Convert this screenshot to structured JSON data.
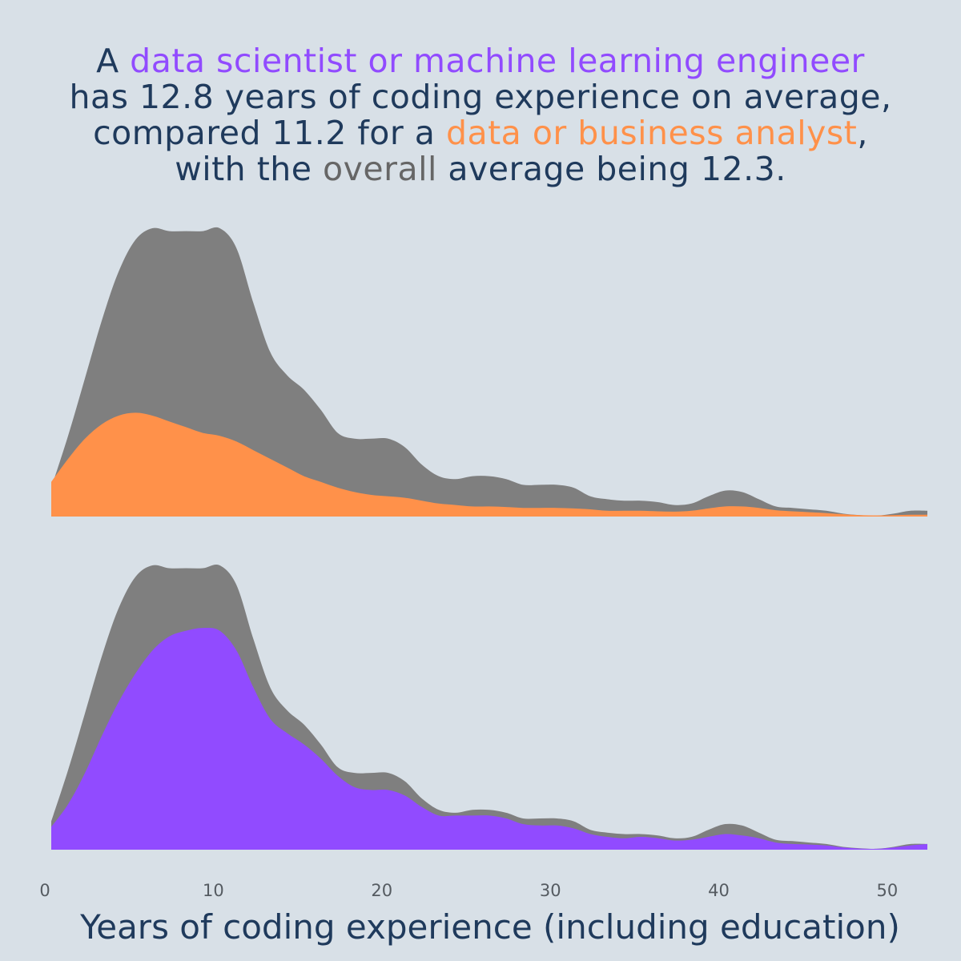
{
  "headline": {
    "l1_pre": "A ",
    "l1_hl": "data scientist or machine learning engineer",
    "l2": "has 12.8 years of coding experience on average,",
    "l3_pre": "compared 11.2 for a ",
    "l3_hl": "data or business analyst",
    "l3_post": ",",
    "l4_pre": "with the ",
    "l4_hl": "overall",
    "l4_post": " average being 12.3."
  },
  "colors": {
    "background": "#d8e0e7",
    "overall": "#7f7f7f",
    "analyst": "#ff914a",
    "ds_mle": "#914bff",
    "text": "#1f3a5c",
    "overall_text": "#666666"
  },
  "chart_data": [
    {
      "type": "area",
      "xlim": [
        0,
        52
      ],
      "series": [
        {
          "name": "overall",
          "x": [
            0,
            1,
            2,
            3,
            4,
            5,
            6,
            7,
            8,
            9,
            10,
            11,
            12,
            13,
            14,
            15,
            16,
            17,
            18,
            19,
            20,
            21,
            22,
            23,
            24,
            25,
            26,
            27,
            28,
            29,
            30,
            31,
            32,
            33,
            34,
            35,
            36,
            37,
            38,
            39,
            40,
            41,
            42,
            43,
            44,
            45,
            46,
            47,
            48,
            49,
            50,
            51,
            52
          ],
          "values": [
            0.1,
            0.28,
            0.48,
            0.68,
            0.85,
            0.96,
            1.0,
            0.99,
            0.99,
            0.99,
            1.0,
            0.93,
            0.74,
            0.57,
            0.49,
            0.44,
            0.37,
            0.29,
            0.27,
            0.27,
            0.27,
            0.24,
            0.18,
            0.14,
            0.13,
            0.14,
            0.14,
            0.13,
            0.11,
            0.11,
            0.11,
            0.1,
            0.07,
            0.06,
            0.055,
            0.055,
            0.05,
            0.04,
            0.045,
            0.07,
            0.09,
            0.085,
            0.06,
            0.035,
            0.03,
            0.025,
            0.02,
            0.01,
            0.005,
            0.003,
            0.01,
            0.02,
            0.02
          ]
        },
        {
          "name": "data or business analyst",
          "x": [
            0,
            1,
            2,
            3,
            4,
            5,
            6,
            7,
            8,
            9,
            10,
            11,
            12,
            13,
            14,
            15,
            16,
            17,
            18,
            19,
            20,
            21,
            22,
            23,
            24,
            25,
            26,
            27,
            28,
            29,
            30,
            31,
            32,
            33,
            34,
            35,
            36,
            37,
            38,
            39,
            40,
            41,
            42,
            43,
            44,
            45,
            46,
            47,
            48,
            49,
            50,
            51,
            52
          ],
          "values": [
            0.12,
            0.2,
            0.27,
            0.32,
            0.35,
            0.36,
            0.35,
            0.33,
            0.31,
            0.29,
            0.28,
            0.26,
            0.23,
            0.2,
            0.17,
            0.14,
            0.12,
            0.1,
            0.085,
            0.075,
            0.07,
            0.065,
            0.055,
            0.045,
            0.04,
            0.035,
            0.035,
            0.033,
            0.03,
            0.03,
            0.03,
            0.028,
            0.025,
            0.02,
            0.02,
            0.02,
            0.018,
            0.017,
            0.02,
            0.028,
            0.035,
            0.035,
            0.03,
            0.022,
            0.018,
            0.015,
            0.012,
            0.008,
            0.005,
            0.004,
            0.005,
            0.006,
            0.006
          ]
        }
      ]
    },
    {
      "type": "area",
      "xlim": [
        0,
        52
      ],
      "xlabel": "Years of coding experience (including education)",
      "xticks": [
        0,
        10,
        20,
        30,
        40,
        50
      ],
      "series": [
        {
          "name": "overall",
          "x": [
            0,
            1,
            2,
            3,
            4,
            5,
            6,
            7,
            8,
            9,
            10,
            11,
            12,
            13,
            14,
            15,
            16,
            17,
            18,
            19,
            20,
            21,
            22,
            23,
            24,
            25,
            26,
            27,
            28,
            29,
            30,
            31,
            32,
            33,
            34,
            35,
            36,
            37,
            38,
            39,
            40,
            41,
            42,
            43,
            44,
            45,
            46,
            47,
            48,
            49,
            50,
            51,
            52
          ],
          "values": [
            0.1,
            0.28,
            0.48,
            0.68,
            0.85,
            0.96,
            1.0,
            0.99,
            0.99,
            0.99,
            1.0,
            0.93,
            0.74,
            0.57,
            0.49,
            0.44,
            0.37,
            0.29,
            0.27,
            0.27,
            0.27,
            0.24,
            0.18,
            0.14,
            0.13,
            0.14,
            0.14,
            0.13,
            0.11,
            0.11,
            0.11,
            0.1,
            0.07,
            0.06,
            0.055,
            0.055,
            0.05,
            0.04,
            0.045,
            0.07,
            0.09,
            0.085,
            0.06,
            0.035,
            0.03,
            0.025,
            0.02,
            0.01,
            0.005,
            0.003,
            0.01,
            0.02,
            0.02
          ]
        },
        {
          "name": "data scientist or machine learning engineer",
          "x": [
            0,
            1,
            2,
            3,
            4,
            5,
            6,
            7,
            8,
            9,
            10,
            11,
            12,
            13,
            14,
            15,
            16,
            17,
            18,
            19,
            20,
            21,
            22,
            23,
            24,
            25,
            26,
            27,
            28,
            29,
            30,
            31,
            32,
            33,
            34,
            35,
            36,
            37,
            38,
            39,
            40,
            41,
            42,
            43,
            44,
            45,
            46,
            47,
            48,
            49,
            50,
            51,
            52
          ],
          "values": [
            0.08,
            0.16,
            0.27,
            0.4,
            0.52,
            0.62,
            0.7,
            0.75,
            0.77,
            0.78,
            0.77,
            0.7,
            0.57,
            0.46,
            0.41,
            0.37,
            0.32,
            0.26,
            0.22,
            0.21,
            0.21,
            0.19,
            0.15,
            0.12,
            0.12,
            0.12,
            0.12,
            0.11,
            0.09,
            0.085,
            0.085,
            0.075,
            0.055,
            0.045,
            0.04,
            0.045,
            0.04,
            0.032,
            0.035,
            0.045,
            0.055,
            0.05,
            0.04,
            0.025,
            0.02,
            0.018,
            0.015,
            0.008,
            0.004,
            0.003,
            0.008,
            0.015,
            0.02
          ]
        }
      ]
    }
  ]
}
